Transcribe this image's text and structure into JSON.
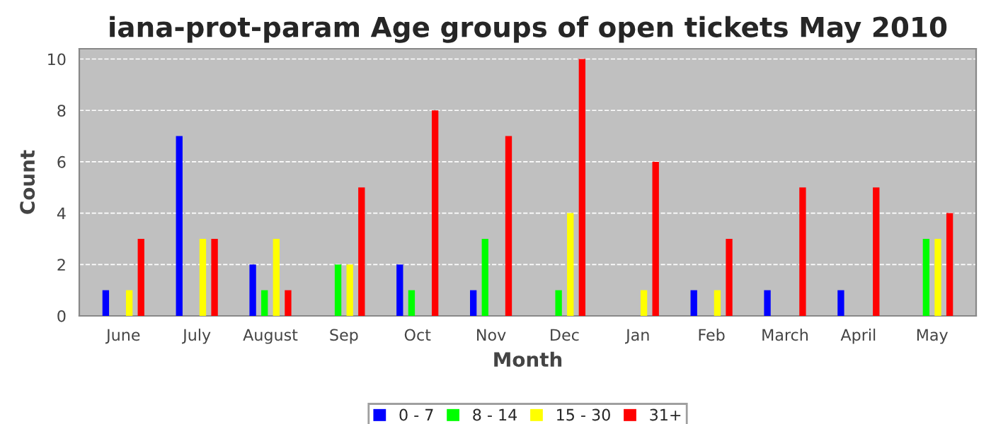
{
  "chart_data": {
    "type": "bar",
    "title": "iana-prot-param Age groups of open tickets May 2010",
    "xlabel": "Month",
    "ylabel": "Count",
    "categories": [
      "June",
      "July",
      "August",
      "Sep",
      "Oct",
      "Nov",
      "Dec",
      "Jan",
      "Feb",
      "March",
      "April",
      "May"
    ],
    "series": [
      {
        "name": "0 - 7",
        "color": "#0000ff",
        "values": [
          1,
          7,
          2,
          0,
          2,
          1,
          0,
          0,
          1,
          1,
          1,
          0
        ]
      },
      {
        "name": "8 - 14",
        "color": "#00ff00",
        "values": [
          0,
          0,
          1,
          2,
          1,
          3,
          1,
          0,
          0,
          0,
          0,
          3
        ]
      },
      {
        "name": "15 - 30",
        "color": "#ffff00",
        "values": [
          1,
          3,
          3,
          2,
          0,
          0,
          4,
          1,
          1,
          0,
          0,
          3
        ]
      },
      {
        "name": "31+",
        "color": "#ff0000",
        "values": [
          3,
          3,
          1,
          5,
          8,
          7,
          10,
          6,
          3,
          5,
          5,
          4
        ]
      }
    ],
    "ylim": [
      0,
      10.4
    ],
    "yticks": [
      0,
      2,
      4,
      6,
      8,
      10
    ],
    "grid": "y",
    "legend": "bottom"
  }
}
